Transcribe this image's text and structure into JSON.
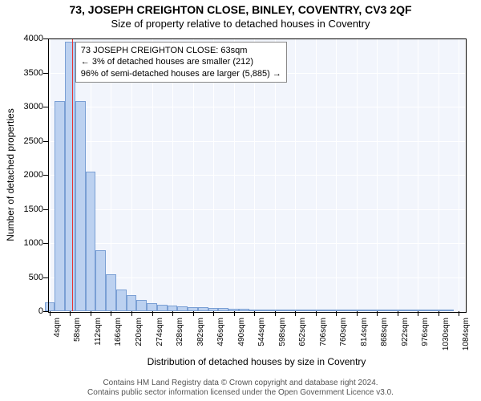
{
  "title_main": "73, JOSEPH CREIGHTON CLOSE, BINLEY, COVENTRY, CV3 2QF",
  "title_sub": "Size of property relative to detached houses in Coventry",
  "chart": {
    "type": "bar",
    "background_color": "#f2f5fc",
    "grid_color": "#ffffff",
    "bar_fill": "#bcd1f0",
    "bar_stroke": "#7a9fd4",
    "marker_color": "#e63333",
    "marker_x_value": 63,
    "ylim": [
      0,
      4000
    ],
    "y_ticks": [
      0,
      500,
      1000,
      1500,
      2000,
      2500,
      3000,
      3500,
      4000
    ],
    "x_ticks": [
      4,
      58,
      112,
      166,
      220,
      274,
      328,
      382,
      436,
      490,
      544,
      598,
      652,
      706,
      760,
      814,
      868,
      922,
      976,
      1030,
      1084
    ],
    "x_tick_suffix": "sqm",
    "x_range": [
      0,
      1100
    ],
    "bar_width_data": 27,
    "bars": [
      {
        "x": 4,
        "y": 130
      },
      {
        "x": 31,
        "y": 3080
      },
      {
        "x": 58,
        "y": 3950
      },
      {
        "x": 85,
        "y": 3080
      },
      {
        "x": 112,
        "y": 2050
      },
      {
        "x": 139,
        "y": 900
      },
      {
        "x": 166,
        "y": 540
      },
      {
        "x": 193,
        "y": 320
      },
      {
        "x": 220,
        "y": 240
      },
      {
        "x": 247,
        "y": 170
      },
      {
        "x": 274,
        "y": 120
      },
      {
        "x": 301,
        "y": 95
      },
      {
        "x": 328,
        "y": 80
      },
      {
        "x": 355,
        "y": 70
      },
      {
        "x": 382,
        "y": 60
      },
      {
        "x": 409,
        "y": 55
      },
      {
        "x": 436,
        "y": 48
      },
      {
        "x": 463,
        "y": 42
      },
      {
        "x": 490,
        "y": 38
      },
      {
        "x": 517,
        "y": 32
      },
      {
        "x": 544,
        "y": 28
      },
      {
        "x": 571,
        "y": 24
      },
      {
        "x": 598,
        "y": 20
      },
      {
        "x": 625,
        "y": 17
      },
      {
        "x": 652,
        "y": 15
      },
      {
        "x": 679,
        "y": 13
      },
      {
        "x": 706,
        "y": 11
      },
      {
        "x": 733,
        "y": 10
      },
      {
        "x": 760,
        "y": 9
      },
      {
        "x": 787,
        "y": 8
      },
      {
        "x": 814,
        "y": 7
      },
      {
        "x": 841,
        "y": 6
      },
      {
        "x": 868,
        "y": 6
      },
      {
        "x": 895,
        "y": 5
      },
      {
        "x": 922,
        "y": 5
      },
      {
        "x": 949,
        "y": 4
      },
      {
        "x": 976,
        "y": 4
      },
      {
        "x": 1003,
        "y": 4
      },
      {
        "x": 1030,
        "y": 3
      },
      {
        "x": 1057,
        "y": 3
      }
    ],
    "ylabel": "Number of detached properties",
    "xlabel": "Distribution of detached houses by size in Coventry",
    "label_fontsize": 12,
    "tick_fontsize": 11
  },
  "annotation": {
    "line1": "73 JOSEPH CREIGHTON CLOSE: 63sqm",
    "line2": "← 3% of detached houses are smaller (212)",
    "line3": "96% of semi-detached houses are larger (5,885) →",
    "border_color": "#888888",
    "background": "#ffffff",
    "fontsize": 11
  },
  "copyright": {
    "line1": "Contains HM Land Registry data © Crown copyright and database right 2024.",
    "line2": "Contains public sector information licensed under the Open Government Licence v3.0."
  }
}
